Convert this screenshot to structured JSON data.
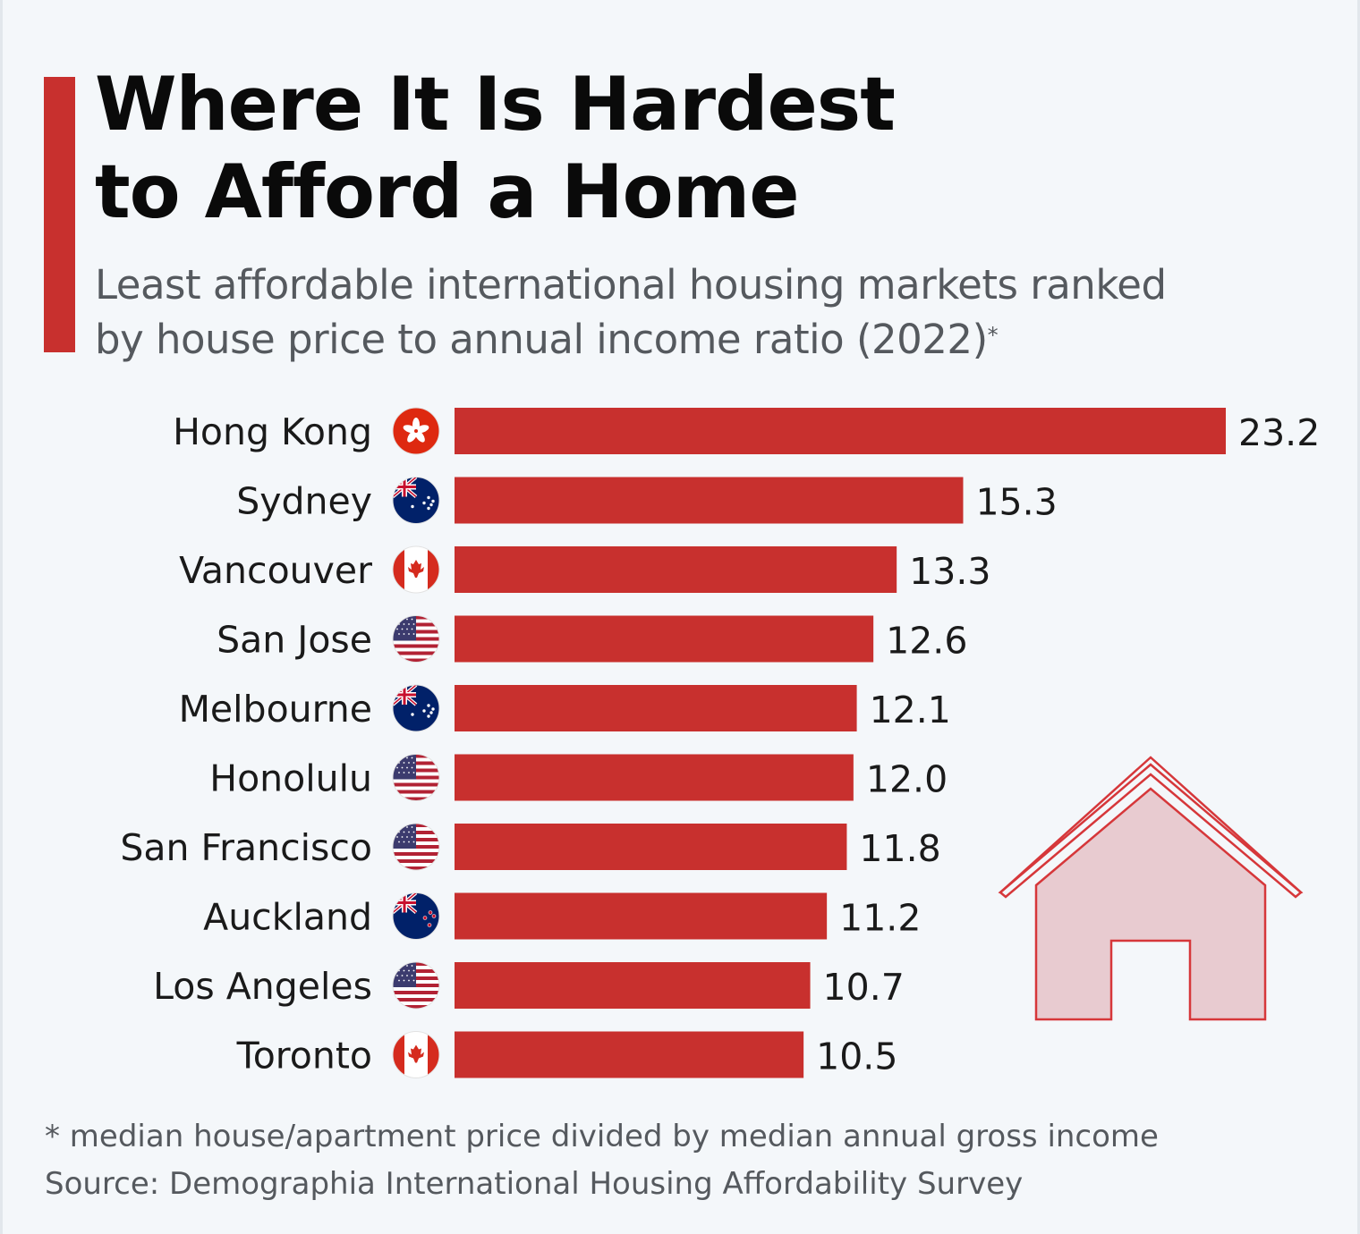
{
  "header": {
    "title_line1": "Where It Is Hardest",
    "title_line2": "to Afford a Home",
    "subtitle_line1": "Least affordable international housing markets ranked",
    "subtitle_line2": "by house price to annual income ratio (2022)",
    "subtitle_marker": "*"
  },
  "footer": {
    "note": "* median house/apartment price divided by median annual gross income",
    "source": "Source: Demographia International Housing Affordability Survey"
  },
  "colors": {
    "bar": "#c8302e",
    "accent": "#c8302e",
    "house_fill": "#e8cbd0",
    "house_stroke": "#d6373a"
  },
  "chart_data": {
    "type": "bar",
    "orientation": "horizontal",
    "categories": [
      "Hong Kong",
      "Sydney",
      "Vancouver",
      "San Jose",
      "Melbourne",
      "Honolulu",
      "San Francisco",
      "Auckland",
      "Los Angeles",
      "Toronto"
    ],
    "values": [
      23.2,
      15.3,
      13.3,
      12.6,
      12.1,
      12.0,
      11.8,
      11.2,
      10.7,
      10.5
    ],
    "value_labels": [
      "23.2",
      "15.3",
      "13.3",
      "12.6",
      "12.1",
      "12.0",
      "11.8",
      "11.2",
      "10.7",
      "10.5"
    ],
    "flags": [
      "hong-kong-flag-icon",
      "australia-flag-icon",
      "canada-flag-icon",
      "usa-flag-icon",
      "australia-flag-icon",
      "usa-flag-icon",
      "usa-flag-icon",
      "new-zealand-flag-icon",
      "usa-flag-icon",
      "canada-flag-icon"
    ],
    "xlim": [
      0,
      23.2
    ],
    "grid": false,
    "legend": "none",
    "decoration": "house-icon"
  }
}
